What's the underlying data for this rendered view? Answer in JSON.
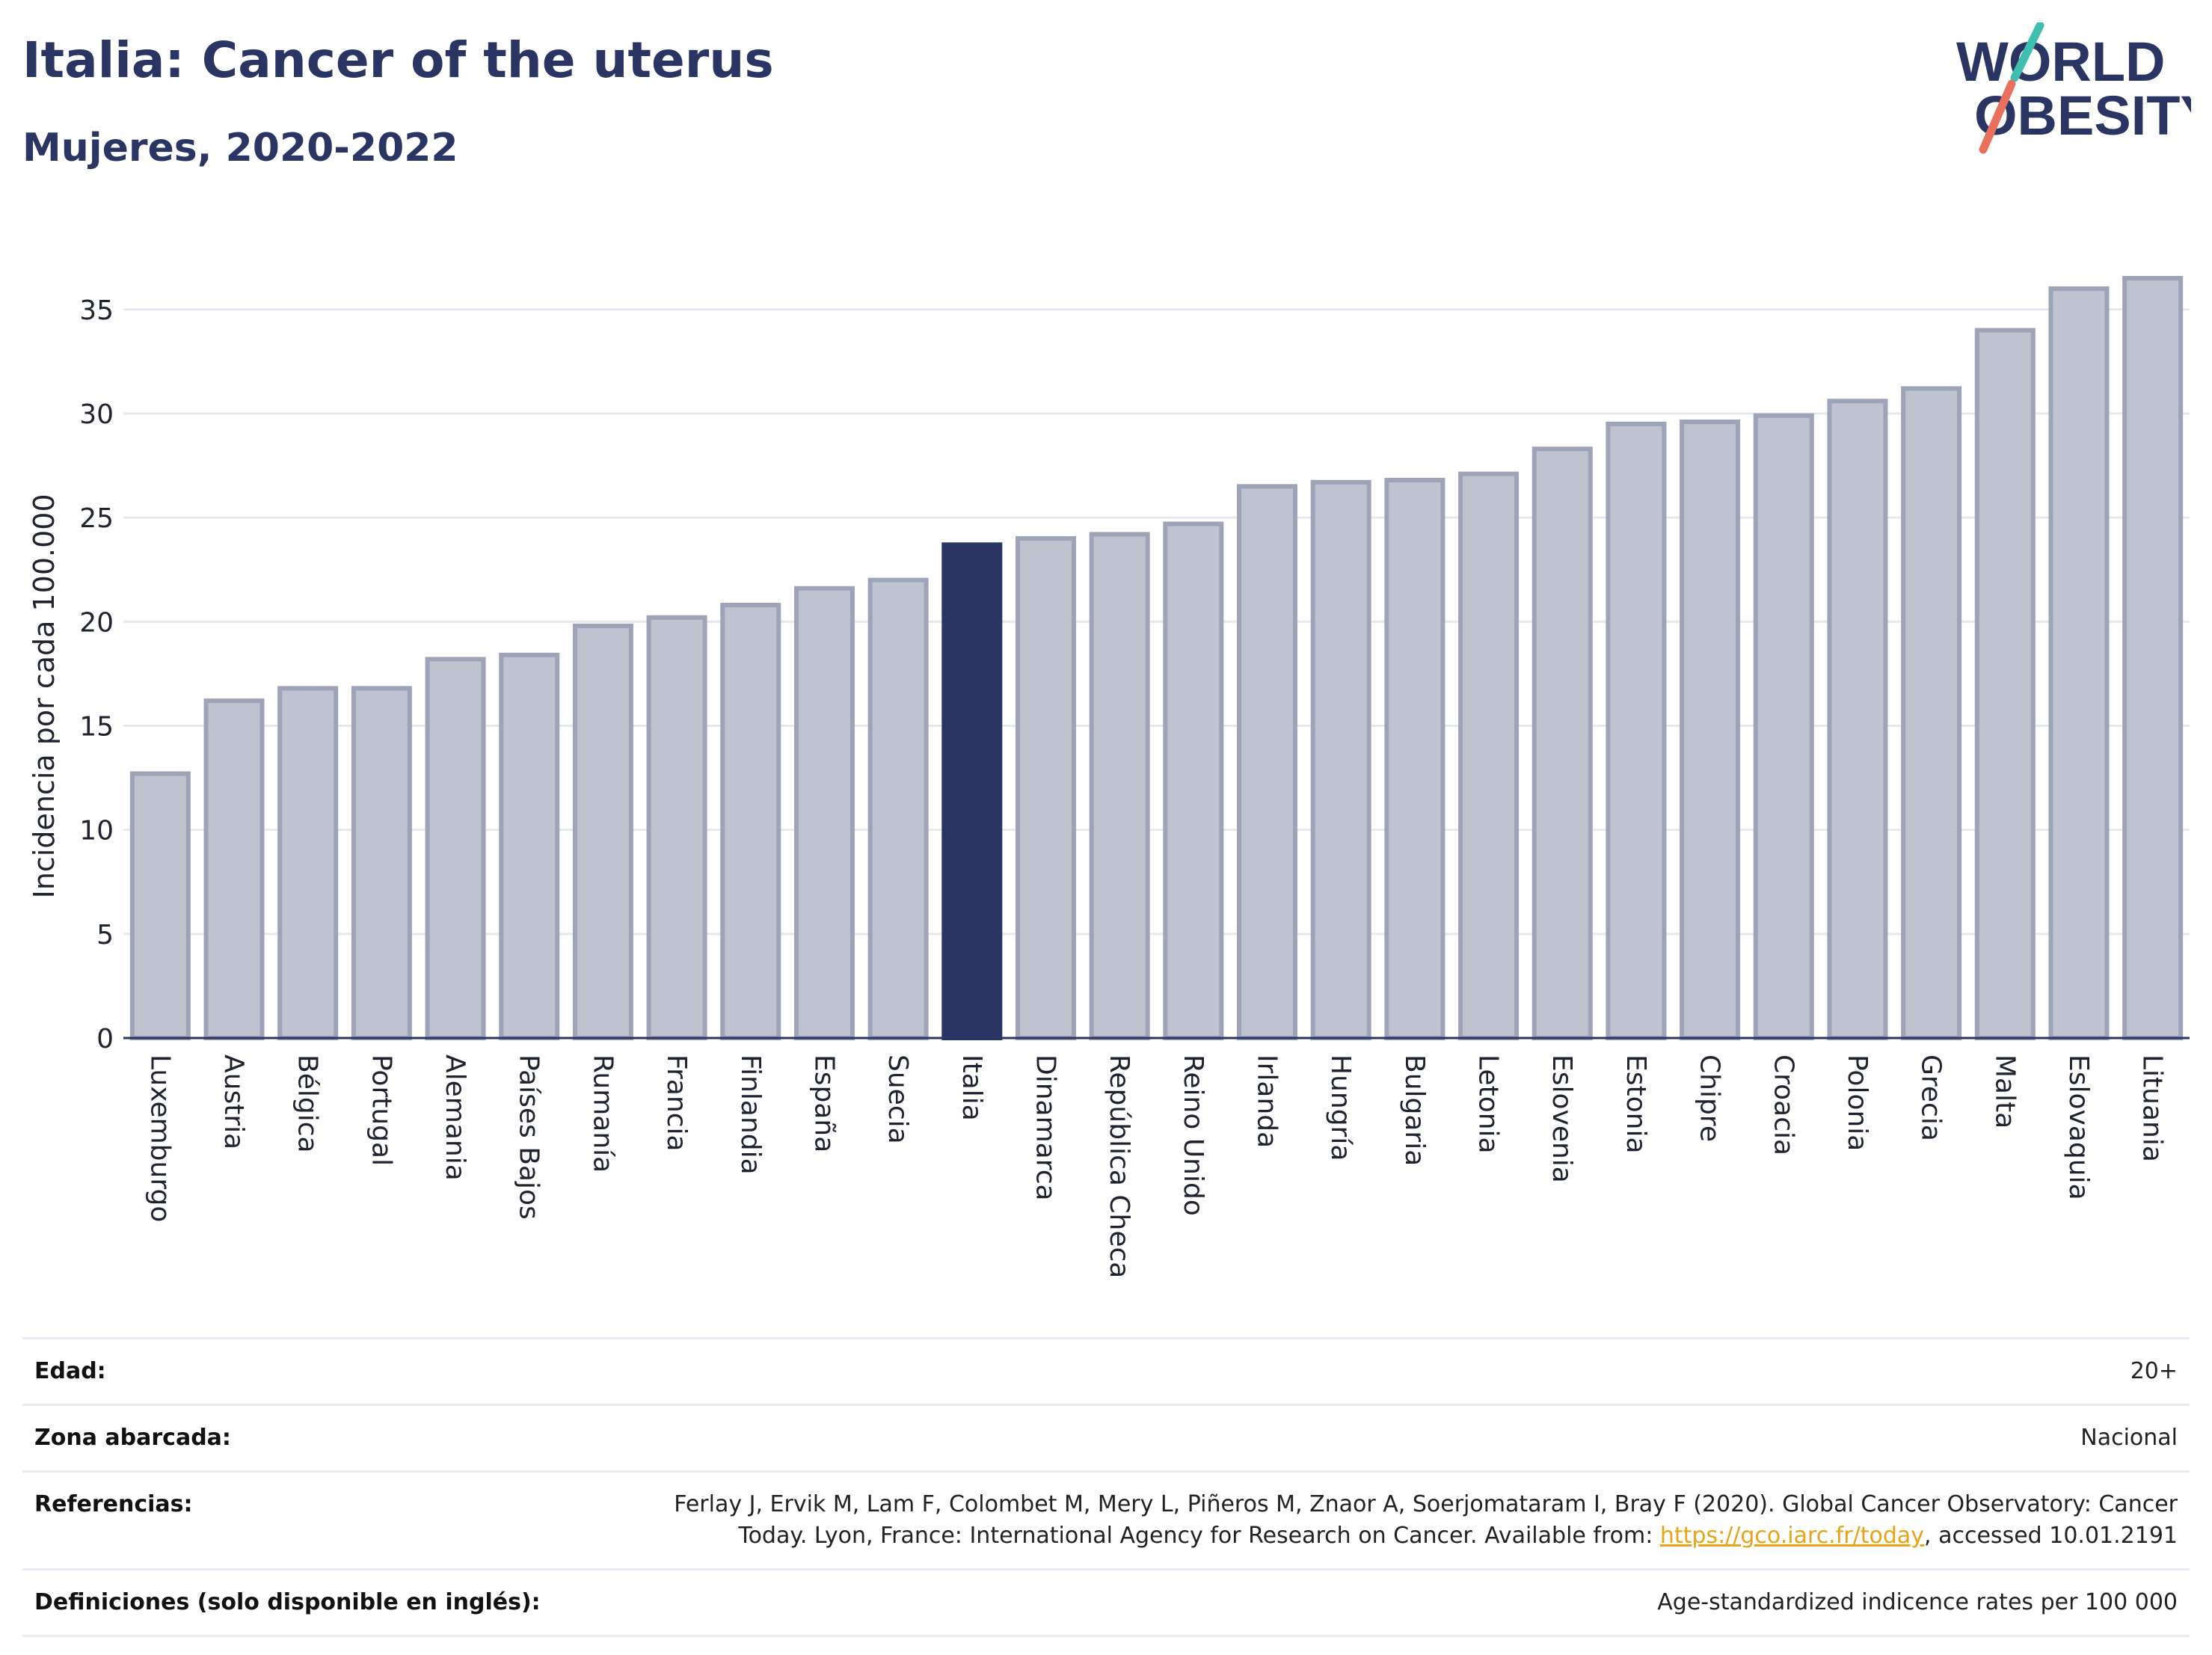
{
  "header": {
    "title": "Italia: Cancer of the uterus",
    "subtitle": "Mujeres, 2020-2022"
  },
  "logo": {
    "line1": "WORLD",
    "line2": "OBESITY",
    "icon": "world-obesity-logo"
  },
  "colors": {
    "bar": "#bfc2cf",
    "bar_border": "#9da3b8",
    "highlight": "#2a3563",
    "grid": "#e6e8ef",
    "axis": "#2a3563"
  },
  "chart_data": {
    "type": "bar",
    "ylabel": "Incidencia por cada 100.000",
    "ylim": [
      0,
      37.5
    ],
    "yticks": [
      0,
      5,
      10,
      15,
      20,
      25,
      30,
      35
    ],
    "highlight": "Italia",
    "categories": [
      "Luxemburgo",
      "Austria",
      "Bélgica",
      "Portugal",
      "Alemania",
      "Países Bajos",
      "Rumanía",
      "Francia",
      "Finlandia",
      "España",
      "Suecia",
      "Italia",
      "Dinamarca",
      "República Checa",
      "Reino Unido",
      "Irlanda",
      "Hungría",
      "Bulgaria",
      "Letonia",
      "Eslovenia",
      "Estonia",
      "Chipre",
      "Croacia",
      "Polonia",
      "Grecia",
      "Malta",
      "Eslovaquia",
      "Lituania"
    ],
    "values": [
      12.7,
      16.2,
      16.8,
      16.8,
      18.2,
      18.4,
      19.8,
      20.2,
      20.8,
      21.6,
      22.0,
      23.7,
      24.0,
      24.2,
      24.7,
      26.5,
      26.7,
      26.8,
      27.1,
      28.3,
      29.5,
      29.6,
      29.9,
      30.6,
      31.2,
      34.0,
      36.0,
      36.5
    ],
    "grid": true
  },
  "info": {
    "age_label": "Edad:",
    "age_value": "20+",
    "area_label": "Zona abarcada:",
    "area_value": "Nacional",
    "refs_label": "Referencias:",
    "refs_line1": "Ferlay J, Ervik M, Lam F, Colombet M, Mery L, Piñeros M, Znaor A, Soerjomataram I, Bray F (2020). Global Cancer Observatory: Cancer",
    "refs_line2_pre": "Today. Lyon, France: International Agency for Research on Cancer. Available from: ",
    "refs_link": "https://gco.iarc.fr/today",
    "refs_line2_post": ", accessed 10.01.2191",
    "defs_label": "Definiciones (solo disponible en inglés):",
    "defs_value": "Age-standardized indicence rates per 100 000"
  }
}
